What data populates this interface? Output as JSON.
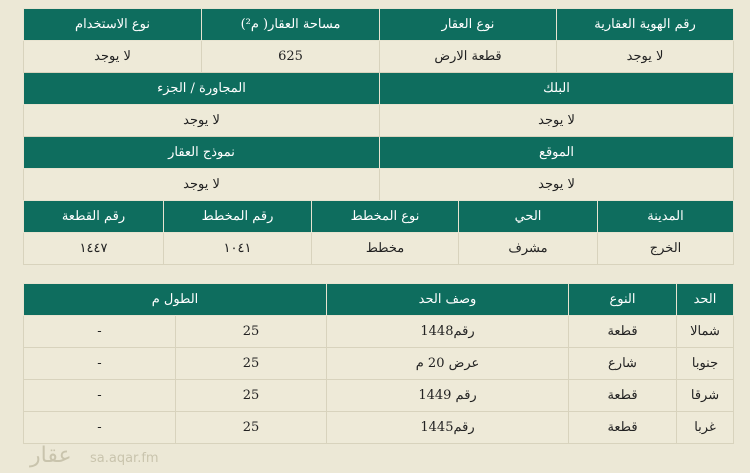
{
  "property": {
    "headers1": [
      "رقم الهوية العقارية",
      "نوع العقار",
      "مساحة العقار( م²)",
      "نوع الاستخدام"
    ],
    "values1": [
      "لا يوجد",
      "قطعة الارض",
      "625",
      "لا يوجد"
    ],
    "headers2": [
      "البلك",
      "المجاورة / الجزء"
    ],
    "values2": [
      "لا يوجد",
      "لا يوجد"
    ],
    "headers3": [
      "الموقع",
      "نموذج العقار"
    ],
    "values3": [
      "لا يوجد",
      "لا يوجد"
    ],
    "headers4": [
      "المدينة",
      "الحي",
      "نوع المخطط",
      "رقم المخطط",
      "رقم القطعة"
    ],
    "values4": [
      "الخرج",
      "مشرف",
      "مخطط",
      "١٠٤١",
      "١٤٤٧"
    ]
  },
  "boundaries": {
    "headers": [
      "الحد",
      "النوع",
      "وصف الحد",
      "الطول م"
    ],
    "rows": [
      [
        "شمالا",
        "قطعة",
        "رقم1448",
        "25",
        "-"
      ],
      [
        "جنوبا",
        "شارع",
        "عرض 20 م",
        "25",
        "-"
      ],
      [
        "شرقا",
        "قطعة",
        "رقم 1449",
        "25",
        "-"
      ],
      [
        "غربا",
        "قطعة",
        "رقم1445",
        "25",
        "-"
      ]
    ]
  },
  "watermark": {
    "logo": "عقار",
    "site": "sa.aqar.fm"
  }
}
